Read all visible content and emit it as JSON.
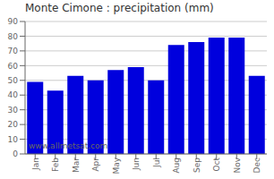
{
  "chart_data": {
    "type": "bar",
    "title": "Monte Cimone : precipitation (mm)",
    "categories": [
      "Jan",
      "Feb",
      "Mar",
      "Apr",
      "May",
      "Jun",
      "Jul",
      "Aug",
      "Sep",
      "Oct",
      "Nov",
      "Dec"
    ],
    "values": [
      49,
      43,
      53,
      50,
      57,
      59,
      50,
      74,
      76,
      79,
      79,
      53
    ],
    "color": "#0000DD",
    "ylim": [
      0,
      90
    ],
    "yticks": [
      0,
      10,
      20,
      30,
      40,
      50,
      60,
      70,
      80,
      90
    ],
    "grid": true,
    "annotations": [
      "www.allmetsat.com"
    ]
  }
}
